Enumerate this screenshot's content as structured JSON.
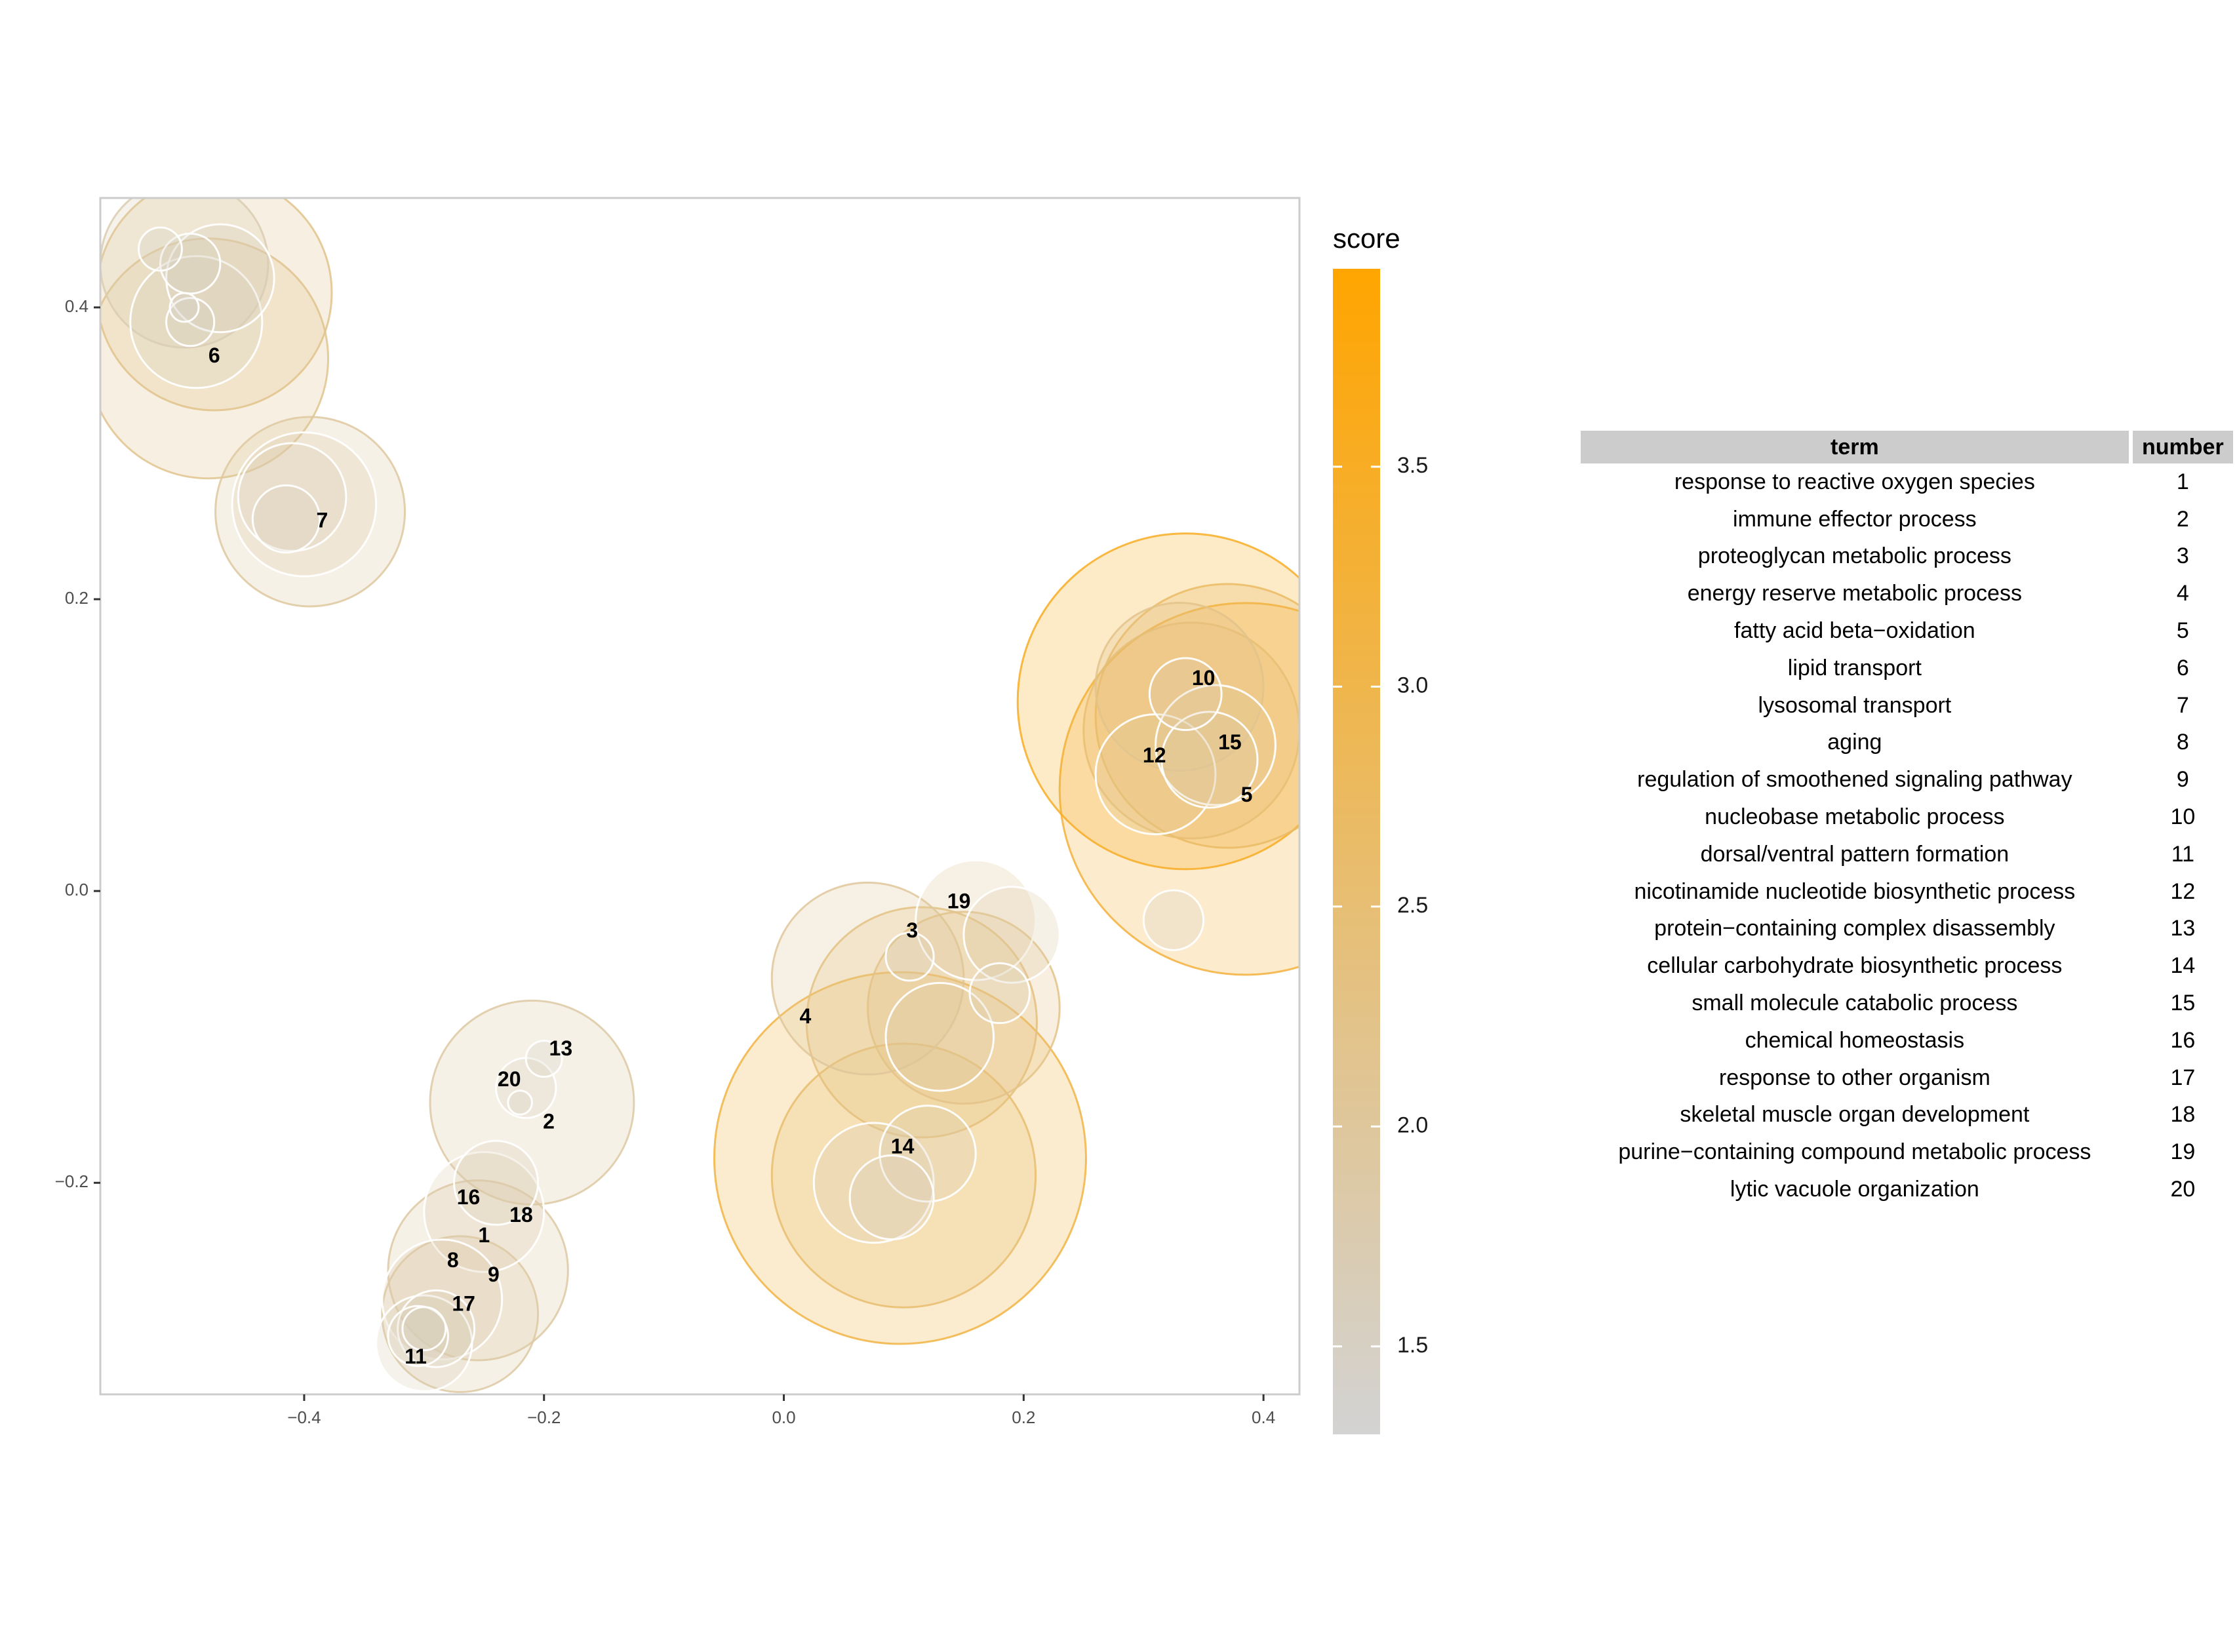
{
  "chart_data": {
    "type": "scatter",
    "title": "",
    "xlabel": "",
    "ylabel": "",
    "xlim": [
      -0.57,
      0.43
    ],
    "ylim": [
      -0.345,
      0.475
    ],
    "x_ticks": [
      -0.4,
      -0.2,
      0.0,
      0.2,
      0.4
    ],
    "x_tick_labels": [
      "−0.4",
      "−0.2",
      "0.0",
      "0.2",
      "0.4"
    ],
    "y_ticks": [
      -0.2,
      0.0,
      0.2,
      0.4
    ],
    "y_tick_labels": [
      "−0.2",
      "0.0",
      "0.2",
      "0.4"
    ],
    "grid": false,
    "legend": {
      "title": "score",
      "placement": "right",
      "min": 1.3,
      "max": 3.95,
      "ticks": [
        1.5,
        2.0,
        2.5,
        3.0,
        3.5
      ],
      "tick_labels": [
        "1.5",
        "2.0",
        "2.5",
        "3.0",
        "3.5"
      ],
      "color_low": "#d3d3d3",
      "color_high": "#ffa500"
    },
    "labels": [
      {
        "text": "1",
        "x": -0.25,
        "y": -0.237
      },
      {
        "text": "2",
        "x": -0.196,
        "y": -0.159
      },
      {
        "text": "3",
        "x": 0.107,
        "y": -0.028
      },
      {
        "text": "4",
        "x": 0.018,
        "y": -0.087
      },
      {
        "text": "5",
        "x": 0.386,
        "y": 0.065
      },
      {
        "text": "6",
        "x": -0.475,
        "y": 0.366
      },
      {
        "text": "7",
        "x": -0.385,
        "y": 0.253
      },
      {
        "text": "8",
        "x": -0.276,
        "y": -0.254
      },
      {
        "text": "9",
        "x": -0.242,
        "y": -0.264
      },
      {
        "text": "10",
        "x": 0.35,
        "y": 0.145
      },
      {
        "text": "11",
        "x": -0.307,
        "y": -0.32
      },
      {
        "text": "12",
        "x": 0.309,
        "y": 0.092
      },
      {
        "text": "13",
        "x": -0.186,
        "y": -0.109
      },
      {
        "text": "14",
        "x": 0.099,
        "y": -0.176
      },
      {
        "text": "15",
        "x": 0.372,
        "y": 0.101
      },
      {
        "text": "16",
        "x": -0.263,
        "y": -0.211
      },
      {
        "text": "17",
        "x": -0.267,
        "y": -0.284
      },
      {
        "text": "18",
        "x": -0.219,
        "y": -0.223
      },
      {
        "text": "19",
        "x": 0.146,
        "y": -0.008
      },
      {
        "text": "20",
        "x": -0.229,
        "y": -0.13
      }
    ],
    "bubbles": [
      {
        "x": -0.475,
        "y": 0.41,
        "r": 0.098,
        "score": 2.2
      },
      {
        "x": -0.48,
        "y": 0.365,
        "r": 0.1,
        "score": 2.15
      },
      {
        "x": -0.5,
        "y": 0.43,
        "r": 0.07,
        "score": 1.7
      },
      {
        "x": -0.47,
        "y": 0.42,
        "r": 0.045,
        "score": 1.6
      },
      {
        "x": -0.49,
        "y": 0.39,
        "r": 0.055,
        "score": 1.55
      },
      {
        "x": -0.52,
        "y": 0.44,
        "r": 0.018,
        "score": 1.5
      },
      {
        "x": -0.495,
        "y": 0.43,
        "r": 0.025,
        "score": 1.5
      },
      {
        "x": -0.495,
        "y": 0.39,
        "r": 0.02,
        "score": 1.5
      },
      {
        "x": -0.5,
        "y": 0.4,
        "r": 0.012,
        "score": 1.45
      },
      {
        "x": -0.395,
        "y": 0.26,
        "r": 0.079,
        "score": 1.95
      },
      {
        "x": -0.4,
        "y": 0.265,
        "r": 0.06,
        "score": 1.8
      },
      {
        "x": -0.41,
        "y": 0.27,
        "r": 0.045,
        "score": 1.7
      },
      {
        "x": -0.415,
        "y": 0.255,
        "r": 0.028,
        "score": 1.6
      },
      {
        "x": 0.097,
        "y": -0.183,
        "r": 0.155,
        "score": 3.1
      },
      {
        "x": 0.1,
        "y": -0.195,
        "r": 0.11,
        "score": 2.55
      },
      {
        "x": 0.115,
        "y": -0.09,
        "r": 0.096,
        "score": 2.4
      },
      {
        "x": 0.07,
        "y": -0.06,
        "r": 0.08,
        "score": 2.0
      },
      {
        "x": 0.15,
        "y": -0.08,
        "r": 0.08,
        "score": 2.25
      },
      {
        "x": 0.16,
        "y": -0.02,
        "r": 0.05,
        "score": 2.0
      },
      {
        "x": 0.19,
        "y": -0.03,
        "r": 0.04,
        "score": 1.9
      },
      {
        "x": 0.13,
        "y": -0.1,
        "r": 0.045,
        "score": 1.9
      },
      {
        "x": 0.105,
        "y": -0.045,
        "r": 0.02,
        "score": 1.7
      },
      {
        "x": 0.18,
        "y": -0.07,
        "r": 0.025,
        "score": 1.7
      },
      {
        "x": 0.075,
        "y": -0.2,
        "r": 0.05,
        "score": 1.7
      },
      {
        "x": 0.12,
        "y": -0.18,
        "r": 0.04,
        "score": 1.7
      },
      {
        "x": 0.09,
        "y": -0.21,
        "r": 0.035,
        "score": 1.6
      },
      {
        "x": 0.335,
        "y": 0.13,
        "r": 0.14,
        "score": 3.5
      },
      {
        "x": 0.385,
        "y": 0.07,
        "r": 0.155,
        "score": 3.2
      },
      {
        "x": 0.37,
        "y": 0.12,
        "r": 0.11,
        "score": 2.7
      },
      {
        "x": 0.34,
        "y": 0.11,
        "r": 0.09,
        "score": 2.5
      },
      {
        "x": 0.33,
        "y": 0.14,
        "r": 0.07,
        "score": 2.2
      },
      {
        "x": 0.31,
        "y": 0.08,
        "r": 0.05,
        "score": 2.0
      },
      {
        "x": 0.36,
        "y": 0.1,
        "r": 0.05,
        "score": 2.0
      },
      {
        "x": 0.335,
        "y": 0.135,
        "r": 0.03,
        "score": 1.8
      },
      {
        "x": 0.355,
        "y": 0.09,
        "r": 0.04,
        "score": 1.9
      },
      {
        "x": 0.325,
        "y": -0.02,
        "r": 0.025,
        "score": 1.5
      },
      {
        "x": -0.21,
        "y": -0.145,
        "r": 0.085,
        "score": 1.9
      },
      {
        "x": -0.215,
        "y": -0.135,
        "r": 0.025,
        "score": 1.6
      },
      {
        "x": -0.2,
        "y": -0.115,
        "r": 0.015,
        "score": 1.5
      },
      {
        "x": -0.22,
        "y": -0.145,
        "r": 0.01,
        "score": 1.5
      },
      {
        "x": -0.255,
        "y": -0.26,
        "r": 0.075,
        "score": 1.9
      },
      {
        "x": -0.25,
        "y": -0.22,
        "r": 0.05,
        "score": 1.8
      },
      {
        "x": -0.24,
        "y": -0.2,
        "r": 0.035,
        "score": 1.7
      },
      {
        "x": -0.27,
        "y": -0.29,
        "r": 0.065,
        "score": 1.9
      },
      {
        "x": -0.285,
        "y": -0.28,
        "r": 0.05,
        "score": 1.8
      },
      {
        "x": -0.3,
        "y": -0.31,
        "r": 0.04,
        "score": 1.7
      },
      {
        "x": -0.29,
        "y": -0.3,
        "r": 0.032,
        "score": 1.65
      },
      {
        "x": -0.305,
        "y": -0.305,
        "r": 0.025,
        "score": 1.6
      },
      {
        "x": -0.3,
        "y": -0.3,
        "r": 0.018,
        "score": 1.5
      }
    ]
  },
  "table": {
    "headers": {
      "term": "term",
      "number": "number"
    },
    "rows": [
      {
        "term": "response to reactive oxygen species",
        "number": "1"
      },
      {
        "term": "immune effector process",
        "number": "2"
      },
      {
        "term": "proteoglycan metabolic process",
        "number": "3"
      },
      {
        "term": "energy reserve metabolic process",
        "number": "4"
      },
      {
        "term": "fatty acid beta−oxidation",
        "number": "5"
      },
      {
        "term": "lipid transport",
        "number": "6"
      },
      {
        "term": "lysosomal transport",
        "number": "7"
      },
      {
        "term": "aging",
        "number": "8"
      },
      {
        "term": "regulation of smoothened signaling pathway",
        "number": "9"
      },
      {
        "term": "nucleobase metabolic process",
        "number": "10"
      },
      {
        "term": "dorsal/ventral pattern formation",
        "number": "11"
      },
      {
        "term": "nicotinamide nucleotide biosynthetic process",
        "number": "12"
      },
      {
        "term": "protein−containing complex disassembly",
        "number": "13"
      },
      {
        "term": "cellular carbohydrate biosynthetic process",
        "number": "14"
      },
      {
        "term": "small molecule catabolic process",
        "number": "15"
      },
      {
        "term": "chemical homeostasis",
        "number": "16"
      },
      {
        "term": "response to other organism",
        "number": "17"
      },
      {
        "term": "skeletal muscle organ development",
        "number": "18"
      },
      {
        "term": "purine−containing compound metabolic process",
        "number": "19"
      },
      {
        "term": "lytic vacuole organization",
        "number": "20"
      }
    ]
  }
}
